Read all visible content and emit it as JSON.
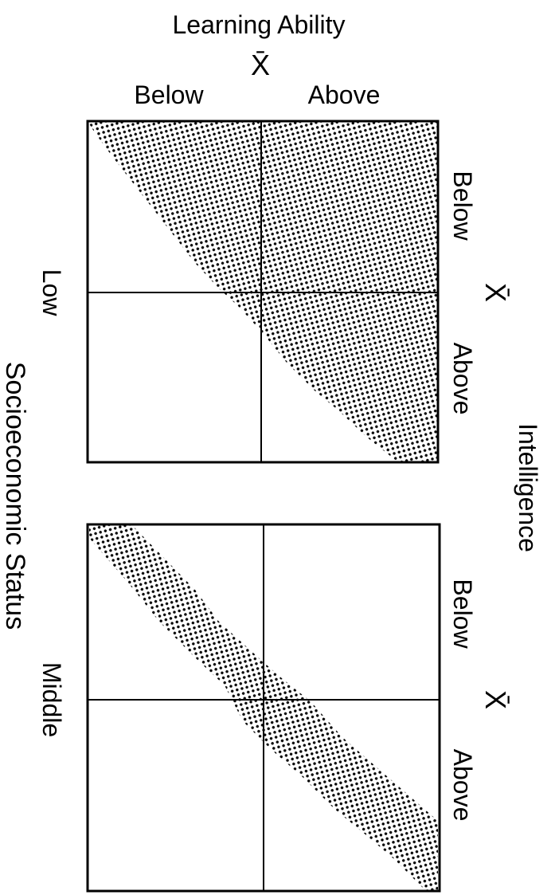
{
  "top_axis": {
    "title": "Learning Ability",
    "mean_label": "X̄",
    "below_label": "Below",
    "above_label": "Above"
  },
  "right_axis": {
    "title": "Intelligence",
    "mean_label": "X̄",
    "below_label": "Below",
    "above_label": "Above"
  },
  "left_axis": {
    "title": "Socioeconomic Status"
  },
  "panels": [
    {
      "id": "low",
      "label": "Low",
      "shading": "dotted",
      "band": "wide-upper-right"
    },
    {
      "id": "middle",
      "label": "Middle",
      "shading": "dotted",
      "band": "narrow-diagonal"
    }
  ],
  "colors": {
    "ink": "#000000",
    "paper": "#ffffff"
  }
}
